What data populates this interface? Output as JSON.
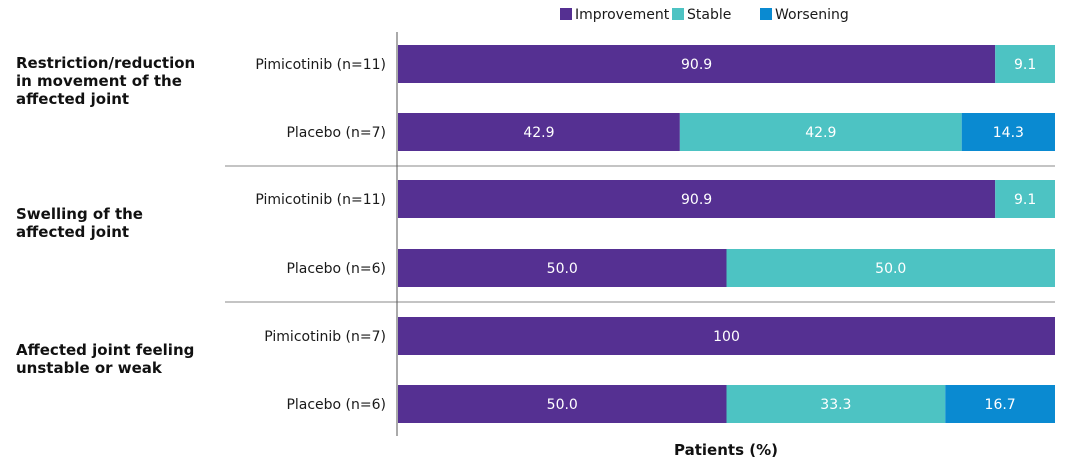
{
  "chart_data": {
    "type": "bar",
    "orientation": "horizontal",
    "stacked": true,
    "xlabel": "Patients (%)",
    "xlim": [
      0,
      100
    ],
    "legend": {
      "placement": "top",
      "entries": [
        "Improvement",
        "Stable",
        "Worsening"
      ]
    },
    "colors": {
      "Improvement": "#553092",
      "Stable": "#4dc3c3",
      "Worsening": "#0a8ad1"
    },
    "groups": [
      {
        "label_lines": [
          "Restriction/reduction",
          "in movement of the",
          "affected joint"
        ],
        "rows": [
          {
            "label": "Pimicotinib (n=11)",
            "segments": [
              {
                "series": "Improvement",
                "value": 90.9,
                "text": "90.9"
              },
              {
                "series": "Stable",
                "value": 9.1,
                "text": "9.1"
              }
            ]
          },
          {
            "label": "Placebo (n=7)",
            "segments": [
              {
                "series": "Improvement",
                "value": 42.9,
                "text": "42.9"
              },
              {
                "series": "Stable",
                "value": 42.9,
                "text": "42.9"
              },
              {
                "series": "Worsening",
                "value": 14.3,
                "text": "14.3"
              }
            ]
          }
        ]
      },
      {
        "label_lines": [
          "Swelling of the",
          "affected joint"
        ],
        "rows": [
          {
            "label": "Pimicotinib (n=11)",
            "segments": [
              {
                "series": "Improvement",
                "value": 90.9,
                "text": "90.9"
              },
              {
                "series": "Stable",
                "value": 9.1,
                "text": "9.1"
              }
            ]
          },
          {
            "label": "Placebo (n=6)",
            "segments": [
              {
                "series": "Improvement",
                "value": 50.0,
                "text": "50.0"
              },
              {
                "series": "Stable",
                "value": 50.0,
                "text": "50.0"
              }
            ]
          }
        ]
      },
      {
        "label_lines": [
          "Affected joint feeling",
          "unstable or weak"
        ],
        "rows": [
          {
            "label": "Pimicotinib (n=7)",
            "segments": [
              {
                "series": "Improvement",
                "value": 100,
                "text": "100"
              }
            ]
          },
          {
            "label": "Placebo (n=6)",
            "segments": [
              {
                "series": "Improvement",
                "value": 50.0,
                "text": "50.0"
              },
              {
                "series": "Stable",
                "value": 33.3,
                "text": "33.3"
              },
              {
                "series": "Worsening",
                "value": 16.7,
                "text": "16.7"
              }
            ]
          }
        ]
      }
    ]
  }
}
